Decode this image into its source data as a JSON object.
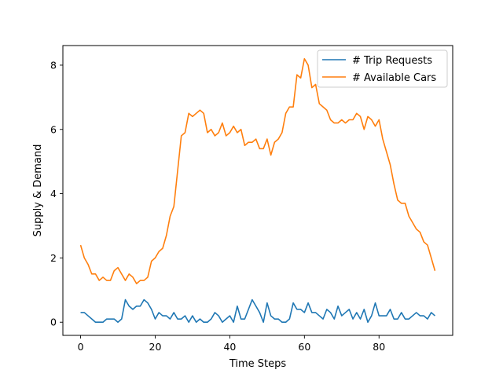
{
  "chart_data": {
    "type": "line",
    "title": "",
    "xlabel": "Time Steps",
    "ylabel": "Supply & Demand",
    "xlim": [
      -4.75,
      99.75
    ],
    "ylim": [
      -0.41,
      8.61
    ],
    "xticks": [
      0,
      20,
      40,
      60,
      80
    ],
    "yticks": [
      0,
      2,
      4,
      6,
      8
    ],
    "grid": false,
    "legend_position": "top-right",
    "x": [
      0,
      1,
      2,
      3,
      4,
      5,
      6,
      7,
      8,
      9,
      10,
      11,
      12,
      13,
      14,
      15,
      16,
      17,
      18,
      19,
      20,
      21,
      22,
      23,
      24,
      25,
      26,
      27,
      28,
      29,
      30,
      31,
      32,
      33,
      34,
      35,
      36,
      37,
      38,
      39,
      40,
      41,
      42,
      43,
      44,
      45,
      46,
      47,
      48,
      49,
      50,
      51,
      52,
      53,
      54,
      55,
      56,
      57,
      58,
      59,
      60,
      61,
      62,
      63,
      64,
      65,
      66,
      67,
      68,
      69,
      70,
      71,
      72,
      73,
      74,
      75,
      76,
      77,
      78,
      79,
      80,
      81,
      82,
      83,
      84,
      85,
      86,
      87,
      88,
      89,
      90,
      91,
      92,
      93,
      94,
      95
    ],
    "series": [
      {
        "name": "# Trip Requests",
        "color": "#1f77b4",
        "values": [
          0.3,
          0.3,
          0.2,
          0.1,
          0.0,
          0.0,
          0.0,
          0.1,
          0.1,
          0.1,
          0.0,
          0.1,
          0.7,
          0.5,
          0.4,
          0.5,
          0.5,
          0.7,
          0.6,
          0.4,
          0.1,
          0.3,
          0.2,
          0.2,
          0.1,
          0.3,
          0.1,
          0.1,
          0.2,
          0.0,
          0.2,
          0.0,
          0.1,
          0.0,
          0.0,
          0.1,
          0.3,
          0.2,
          0.0,
          0.1,
          0.2,
          0.0,
          0.5,
          0.1,
          0.1,
          0.4,
          0.7,
          0.5,
          0.3,
          0.0,
          0.6,
          0.2,
          0.1,
          0.1,
          0.0,
          0.0,
          0.1,
          0.6,
          0.4,
          0.4,
          0.3,
          0.6,
          0.3,
          0.3,
          0.2,
          0.1,
          0.4,
          0.3,
          0.1,
          0.5,
          0.2,
          0.3,
          0.4,
          0.1,
          0.3,
          0.1,
          0.4,
          0.0,
          0.2,
          0.6,
          0.2,
          0.2,
          0.2,
          0.4,
          0.1,
          0.1,
          0.3,
          0.1,
          0.1,
          0.2,
          0.3,
          0.2,
          0.2,
          0.1,
          0.3,
          0.2
        ]
      },
      {
        "name": "# Available Cars",
        "color": "#ff7f0e",
        "values": [
          2.4,
          2.0,
          1.8,
          1.5,
          1.5,
          1.3,
          1.4,
          1.3,
          1.3,
          1.6,
          1.7,
          1.5,
          1.3,
          1.5,
          1.4,
          1.2,
          1.3,
          1.3,
          1.4,
          1.9,
          2.0,
          2.2,
          2.3,
          2.7,
          3.3,
          3.6,
          4.7,
          5.8,
          5.9,
          6.5,
          6.4,
          6.5,
          6.6,
          6.5,
          5.9,
          6.0,
          5.8,
          5.9,
          6.2,
          5.8,
          5.9,
          6.1,
          5.9,
          6.0,
          5.5,
          5.6,
          5.6,
          5.7,
          5.4,
          5.4,
          5.7,
          5.2,
          5.6,
          5.7,
          5.9,
          6.5,
          6.7,
          6.7,
          7.7,
          7.6,
          8.2,
          8.0,
          7.3,
          7.4,
          6.8,
          6.7,
          6.6,
          6.3,
          6.2,
          6.2,
          6.3,
          6.2,
          6.3,
          6.3,
          6.5,
          6.4,
          6.0,
          6.4,
          6.3,
          6.1,
          6.3,
          5.7,
          5.3,
          4.9,
          4.3,
          3.8,
          3.7,
          3.7,
          3.3,
          3.1,
          2.9,
          2.8,
          2.5,
          2.4,
          2.0,
          1.6
        ]
      }
    ]
  }
}
